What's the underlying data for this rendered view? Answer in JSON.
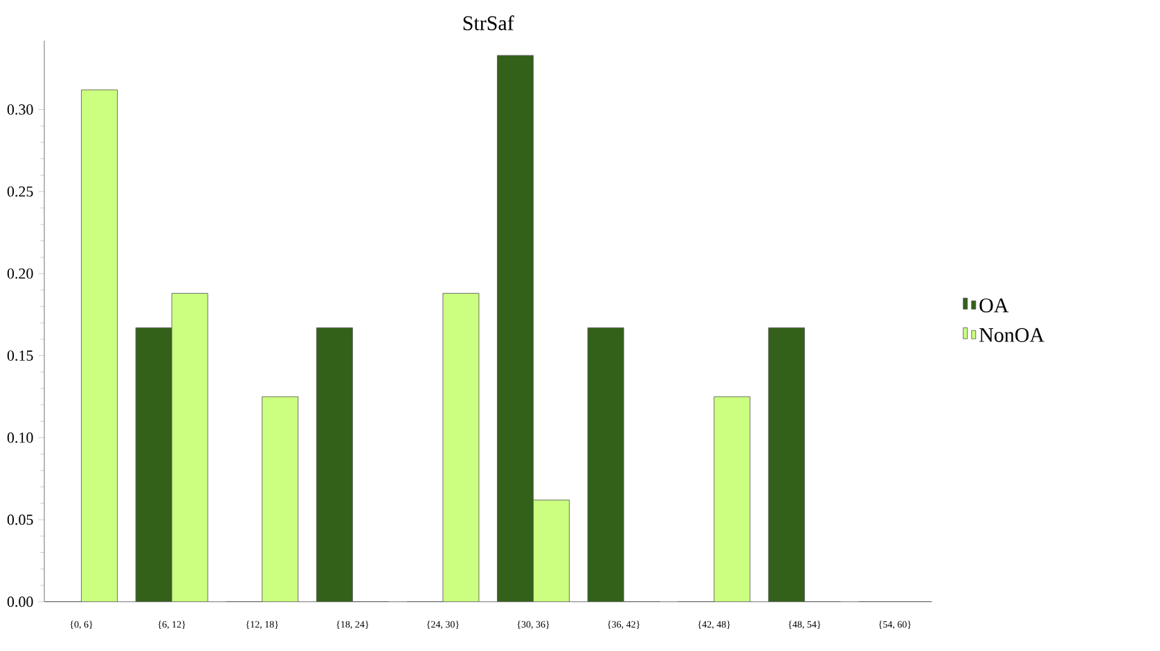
{
  "chart_data": {
    "type": "bar",
    "title": "StrSaf",
    "categories": [
      "{0, 6}",
      "{6, 12}",
      "{12, 18}",
      "{18, 24}",
      "{24, 30}",
      "{30, 36}",
      "{36, 42}",
      "{42, 48}",
      "{48, 54}",
      "{54, 60}"
    ],
    "series": [
      {
        "name": "OA",
        "color": "#336119",
        "values": [
          0,
          0.167,
          0,
          0.167,
          0,
          0.333,
          0.167,
          0,
          0.167,
          0
        ]
      },
      {
        "name": "NonOA",
        "color": "#ccff80",
        "values": [
          0.312,
          0.188,
          0.125,
          0,
          0.188,
          0.062,
          0,
          0.125,
          0,
          0
        ]
      }
    ],
    "ylim": [
      0,
      0.342
    ],
    "yticks": [
      {
        "value": 0,
        "label": "0.00"
      },
      {
        "value": 0.05,
        "label": "0.05"
      },
      {
        "value": 0.1,
        "label": "0.10"
      },
      {
        "value": 0.15,
        "label": "0.15"
      },
      {
        "value": 0.2,
        "label": "0.20"
      },
      {
        "value": 0.25,
        "label": "0.25"
      },
      {
        "value": 0.3,
        "label": "0.30"
      }
    ],
    "legend": "right",
    "grid": false
  }
}
